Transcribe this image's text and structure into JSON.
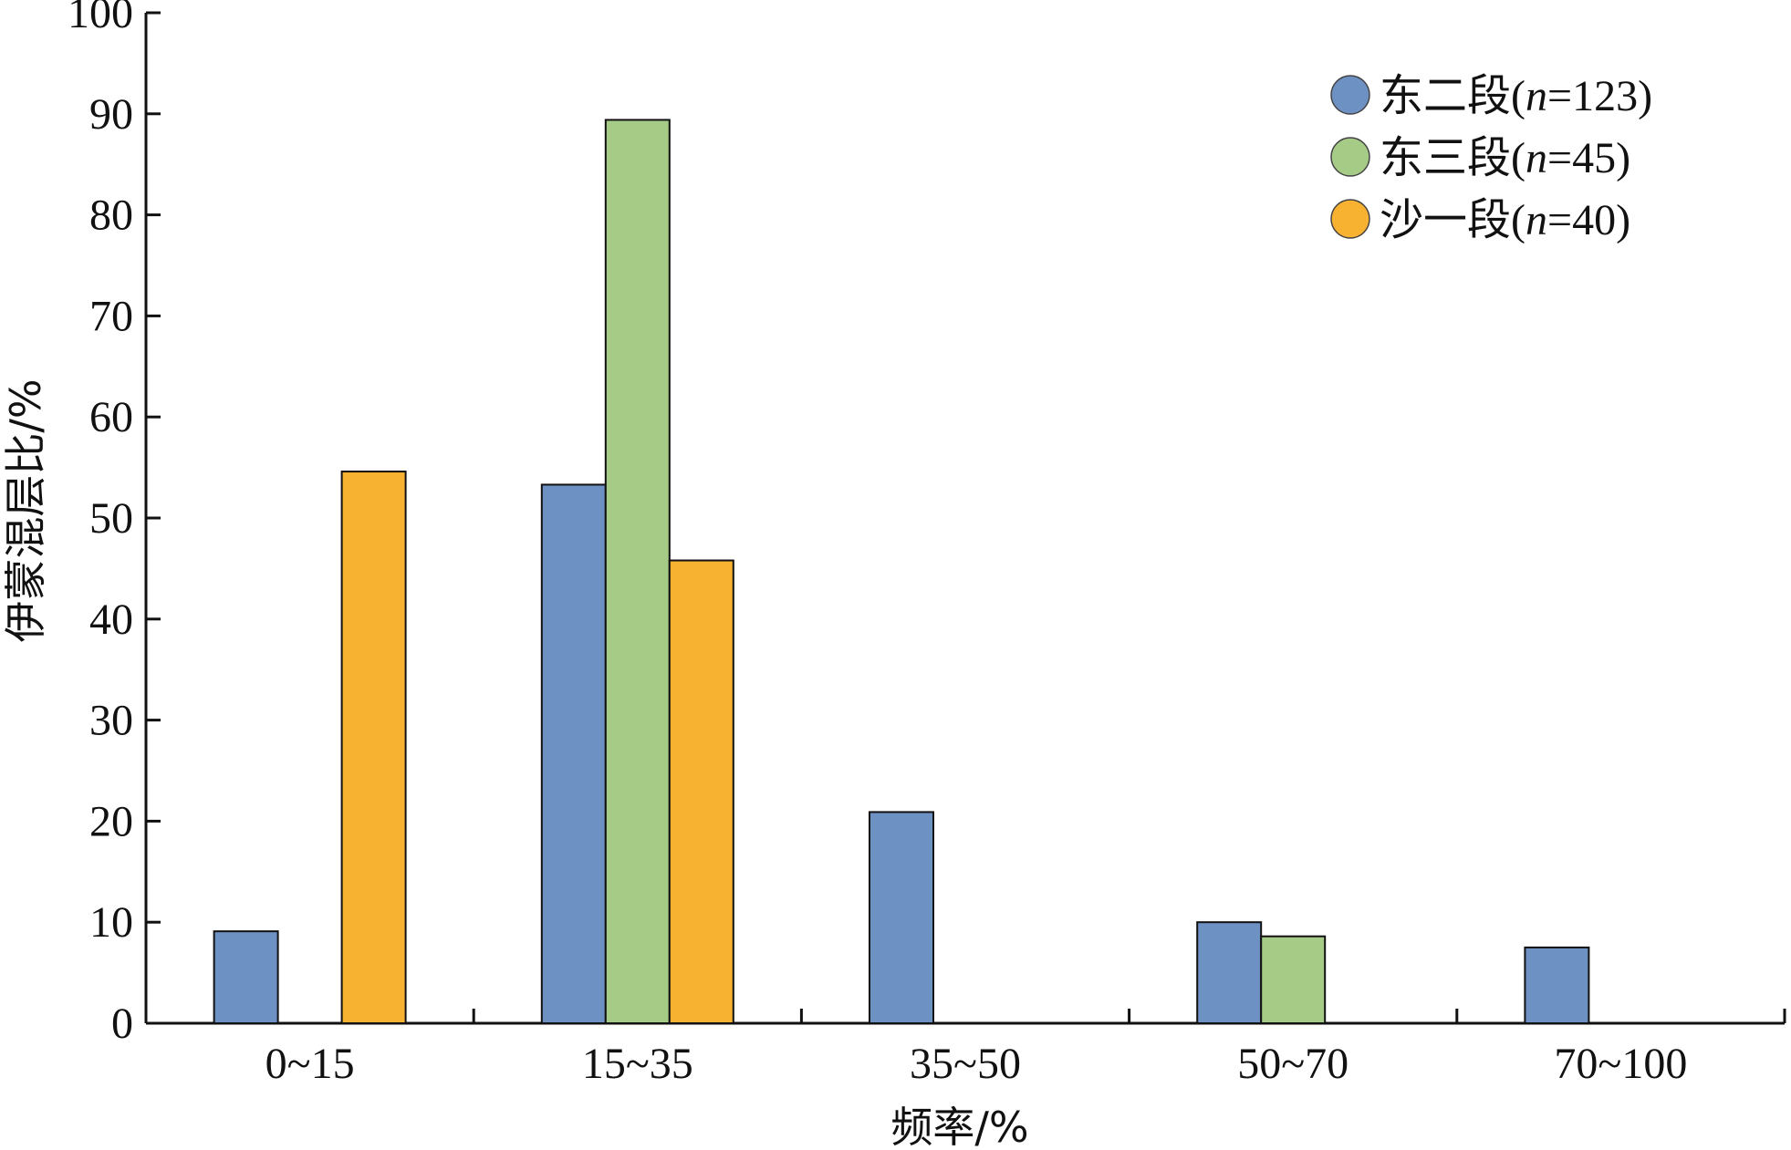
{
  "chart_data": {
    "type": "bar",
    "xlabel": "频率/%",
    "ylabel": "伊蒙混层比/%",
    "ylim": [
      0,
      100
    ],
    "yticks": [
      0,
      10,
      20,
      30,
      40,
      50,
      60,
      70,
      80,
      90,
      100
    ],
    "categories": [
      "0~15",
      "15~35",
      "35~50",
      "50~70",
      "70~100"
    ],
    "series": [
      {
        "name": "东二段",
        "n_symbol": "n",
        "n_value": "123",
        "color": "#6e91c4",
        "values": [
          9.1,
          53.3,
          20.9,
          10.0,
          7.5
        ]
      },
      {
        "name": "东三段",
        "n_symbol": "n",
        "n_value": "45",
        "color": "#a5cb87",
        "values": [
          null,
          89.4,
          null,
          8.6,
          null
        ]
      },
      {
        "name": "沙一段",
        "n_symbol": "n",
        "n_value": "40",
        "color": "#f7b232",
        "values": [
          54.6,
          45.8,
          null,
          null,
          null
        ]
      }
    ],
    "legend_position": "top-right",
    "grid": false
  }
}
